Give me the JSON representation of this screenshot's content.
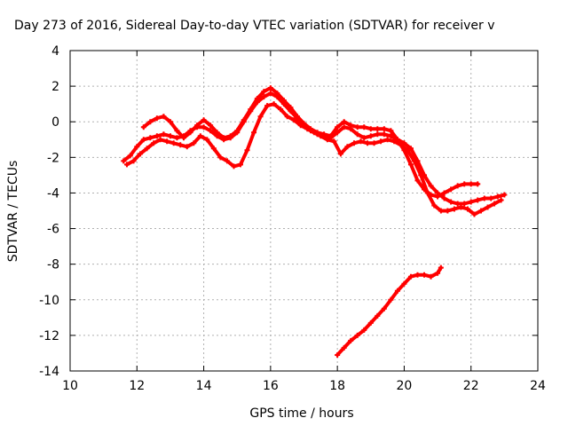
{
  "chart_data": {
    "type": "scatter",
    "title": "Day 273 of 2016, Sidereal Day-to-day VTEC variation (SDTVAR) for receiver v",
    "xlabel": "GPS time / hours",
    "ylabel": "SDTVAR / TECUs",
    "xlim": [
      10,
      24
    ],
    "ylim": [
      -14,
      4
    ],
    "xticks": [
      10,
      12,
      14,
      16,
      18,
      20,
      22,
      24
    ],
    "yticks": [
      -14,
      -12,
      -10,
      -8,
      -6,
      -4,
      -2,
      0,
      2,
      4
    ],
    "grid": true,
    "legend": "none",
    "color": "#ff0000",
    "series": [
      {
        "x": [
          11.6,
          11.8,
          12.0,
          12.2,
          12.4,
          12.6,
          12.8,
          13.0,
          13.2,
          13.4,
          13.6,
          13.8,
          14.0,
          14.2,
          14.4,
          14.6,
          14.8,
          15.0,
          15.2,
          15.4,
          15.6,
          15.8,
          16.0,
          16.2,
          16.4,
          16.6,
          16.8,
          17.0,
          17.2,
          17.4,
          17.6,
          17.8,
          18.0,
          18.2,
          18.4,
          18.6,
          18.8,
          19.0,
          19.2,
          19.4,
          19.6,
          19.8,
          20.0,
          20.2,
          20.4,
          20.6,
          20.8,
          21.0,
          21.2,
          21.4,
          21.6,
          21.8,
          22.0,
          22.2,
          22.4,
          22.6,
          22.8,
          23.0
        ],
        "y": [
          -2.2,
          -1.9,
          -1.4,
          -1.0,
          -0.9,
          -0.8,
          -0.7,
          -0.8,
          -0.9,
          -0.8,
          -0.5,
          -0.3,
          -0.3,
          -0.5,
          -0.8,
          -1.0,
          -0.9,
          -0.6,
          0.0,
          0.6,
          1.1,
          1.4,
          1.6,
          1.4,
          1.0,
          0.6,
          0.2,
          -0.2,
          -0.5,
          -0.7,
          -0.8,
          -0.9,
          -0.6,
          -0.3,
          -0.4,
          -0.7,
          -0.9,
          -0.8,
          -0.7,
          -0.7,
          -0.8,
          -1.0,
          -1.2,
          -1.5,
          -2.2,
          -3.0,
          -3.6,
          -4.0,
          -4.3,
          -4.5,
          -4.6,
          -4.6,
          -4.5,
          -4.4,
          -4.3,
          -4.3,
          -4.2,
          -4.1
        ]
      },
      {
        "x": [
          12.2,
          12.4,
          12.6,
          12.8,
          13.0,
          13.2,
          13.4,
          13.6,
          13.8,
          14.0,
          14.2,
          14.4,
          14.6,
          14.8,
          15.0,
          15.2,
          15.4,
          15.6,
          15.8,
          16.0,
          16.2,
          16.4,
          16.6,
          16.8,
          17.0,
          17.2,
          17.4,
          17.6,
          17.8,
          18.0,
          18.2,
          18.4,
          18.6,
          18.8,
          19.0,
          19.2,
          19.4,
          19.6,
          19.8,
          20.0,
          20.2,
          20.4,
          20.6,
          20.8,
          21.0,
          21.2,
          21.4,
          21.6,
          21.8,
          22.0,
          22.2
        ],
        "y": [
          -0.3,
          0.0,
          0.2,
          0.3,
          0.0,
          -0.5,
          -0.9,
          -0.6,
          -0.2,
          0.1,
          -0.2,
          -0.6,
          -0.9,
          -0.8,
          -0.5,
          0.1,
          0.7,
          1.3,
          1.7,
          1.9,
          1.6,
          1.2,
          0.8,
          0.3,
          -0.1,
          -0.4,
          -0.6,
          -0.7,
          -0.8,
          -0.3,
          0.0,
          -0.2,
          -0.3,
          -0.3,
          -0.4,
          -0.4,
          -0.4,
          -0.5,
          -1.0,
          -1.6,
          -2.4,
          -3.3,
          -3.8,
          -4.1,
          -4.2,
          -4.0,
          -3.8,
          -3.6,
          -3.5,
          -3.5,
          -3.5
        ]
      },
      {
        "x": [
          11.7,
          11.9,
          12.1,
          12.3,
          12.5,
          12.7,
          12.9,
          13.1,
          13.3,
          13.5,
          13.7,
          13.9,
          14.1,
          14.3,
          14.5,
          14.7,
          14.9,
          15.1,
          15.3,
          15.5,
          15.7,
          15.9,
          16.1,
          16.3,
          16.5,
          16.7,
          16.9,
          17.1,
          17.3,
          17.5,
          17.7,
          17.9,
          18.1,
          18.3,
          18.5,
          18.7,
          18.9,
          19.1,
          19.3,
          19.5,
          19.7,
          19.9,
          20.1,
          20.3,
          20.5,
          20.7,
          20.9,
          21.1,
          21.3,
          21.5,
          21.7,
          21.9,
          22.1,
          22.3,
          22.5,
          22.7,
          22.9
        ],
        "y": [
          -2.4,
          -2.2,
          -1.8,
          -1.5,
          -1.2,
          -1.0,
          -1.1,
          -1.2,
          -1.3,
          -1.4,
          -1.2,
          -0.8,
          -1.0,
          -1.5,
          -2.0,
          -2.2,
          -2.5,
          -2.4,
          -1.6,
          -0.6,
          0.3,
          0.9,
          1.0,
          0.7,
          0.3,
          0.1,
          -0.2,
          -0.4,
          -0.6,
          -0.8,
          -1.0,
          -1.1,
          -1.8,
          -1.4,
          -1.2,
          -1.1,
          -1.2,
          -1.2,
          -1.1,
          -1.0,
          -1.1,
          -1.3,
          -1.6,
          -2.2,
          -3.0,
          -4.0,
          -4.7,
          -5.0,
          -5.0,
          -4.9,
          -4.8,
          -4.9,
          -5.2,
          -5.0,
          -4.8,
          -4.6,
          -4.4
        ]
      },
      {
        "x": [
          18.0,
          18.2,
          18.4,
          18.6,
          18.8,
          19.0,
          19.2,
          19.4,
          19.6,
          19.8,
          20.0,
          20.2,
          20.4,
          20.6,
          20.8,
          21.0,
          21.1
        ],
        "y": [
          -13.1,
          -12.7,
          -12.3,
          -12.0,
          -11.7,
          -11.3,
          -10.9,
          -10.5,
          -10.0,
          -9.5,
          -9.1,
          -8.7,
          -8.6,
          -8.6,
          -8.7,
          -8.5,
          -8.2
        ]
      }
    ]
  }
}
